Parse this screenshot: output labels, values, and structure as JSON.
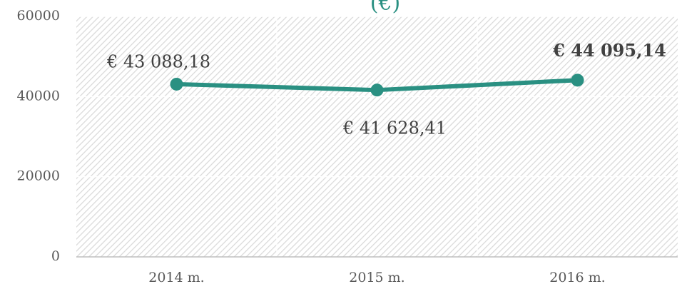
{
  "chart_data": {
    "type": "line",
    "title": "(€)",
    "categories": [
      "2014 m.",
      "2015 m.",
      "2016 m."
    ],
    "series": [
      {
        "name": "€",
        "color": "#2a9082",
        "values": [
          43088.18,
          41628.41,
          44095.14
        ],
        "value_labels": [
          "€ 43 088,18",
          "€ 41 628,41",
          "€ 44 095,14"
        ],
        "label_bold": [
          false,
          false,
          true
        ]
      }
    ],
    "ylim": [
      0,
      60000
    ],
    "yticks": [
      0,
      20000,
      40000,
      60000
    ],
    "grid": true
  }
}
